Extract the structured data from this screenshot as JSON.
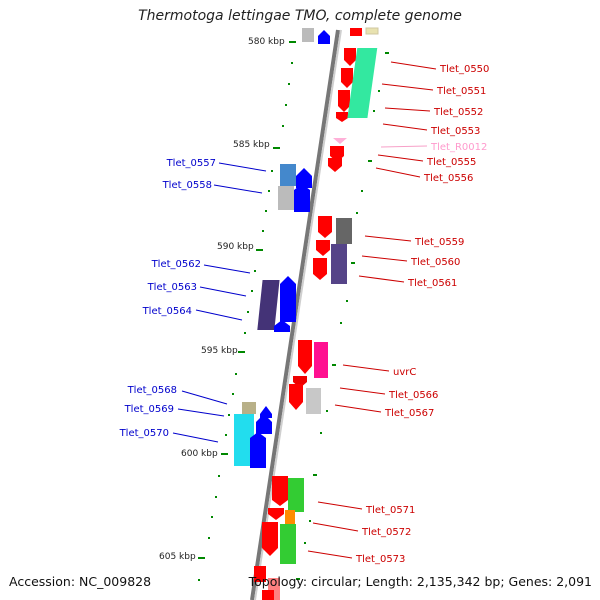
{
  "title": "Thermotoga lettingae TMO, complete genome",
  "footer": {
    "accession": "Accession: NC_009828",
    "topology": "Topology: circular; Length: 2,135,342 bp; Genes: 2,091"
  },
  "colors": {
    "forward_gene": "#ff0000",
    "reverse_gene": "#0000ff",
    "rna_label": "#ff9acd",
    "axis": "#888888",
    "tick": "#008000",
    "label_text": "#c00000",
    "label_text_left": "#0000cc"
  },
  "ruler_ticks": [
    "580 kbp",
    "585 kbp",
    "590 kbp",
    "595 kbp",
    "600 kbp",
    "605 kbp"
  ],
  "right_labels": [
    "Tlet_0550",
    "Tlet_0551",
    "Tlet_0552",
    "Tlet_0553",
    "Tlet_R0012",
    "Tlet_0555",
    "Tlet_0556",
    "Tlet_0559",
    "Tlet_0560",
    "Tlet_0561",
    "uvrC",
    "Tlet_0566",
    "Tlet_0567",
    "Tlet_0571",
    "Tlet_0572",
    "Tlet_0573"
  ],
  "left_labels": [
    "Tlet_0557",
    "Tlet_0558",
    "Tlet_0562",
    "Tlet_0563",
    "Tlet_0564",
    "Tlet_0568",
    "Tlet_0569",
    "Tlet_0570"
  ]
}
